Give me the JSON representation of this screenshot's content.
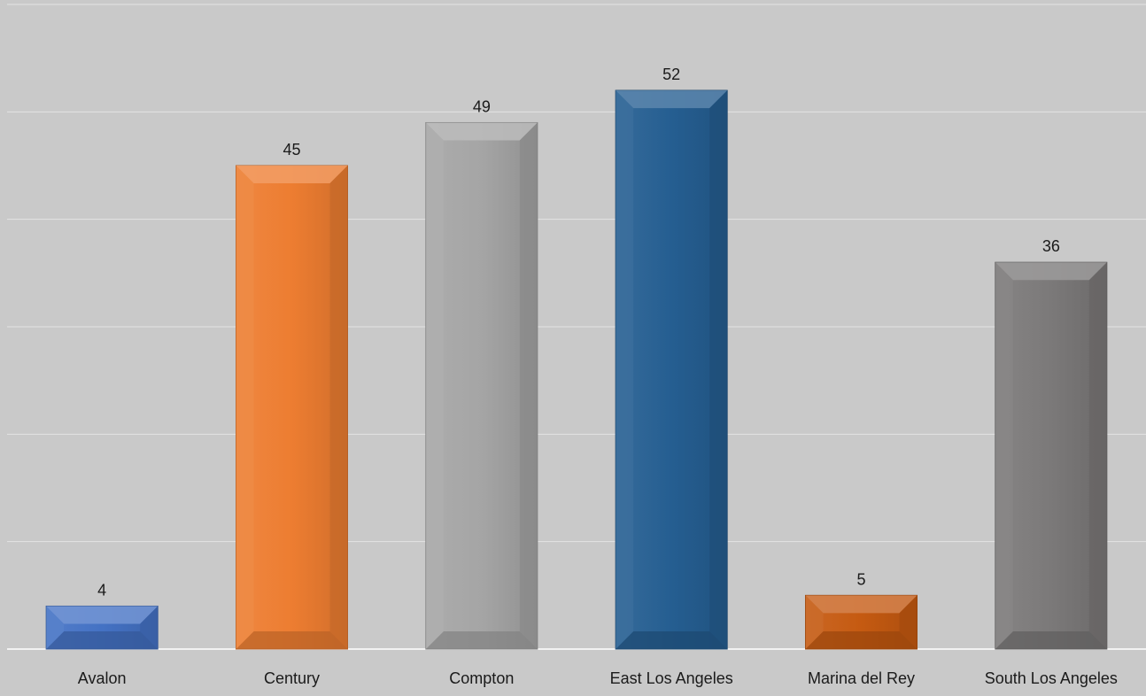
{
  "chart_data": {
    "type": "bar",
    "title": "",
    "xlabel": "",
    "ylabel": "",
    "categories": [
      "Avalon",
      "Century",
      "Compton",
      "East Los Angeles",
      "Marina del Rey",
      "South Los Angeles"
    ],
    "values": [
      4,
      45,
      49,
      52,
      5,
      36
    ],
    "data_labels": [
      "4",
      "45",
      "49",
      "52",
      "5",
      "36"
    ],
    "colors": [
      "#4472c4",
      "#ed7d31",
      "#a5a5a5",
      "#255e91",
      "#c55a11",
      "#7b7979"
    ],
    "ylim": [
      0,
      60
    ],
    "y_tick_step": 10,
    "grid": true,
    "legend": "none",
    "background": "#c9c9c9",
    "gridline_color": "#e3e3e3"
  }
}
